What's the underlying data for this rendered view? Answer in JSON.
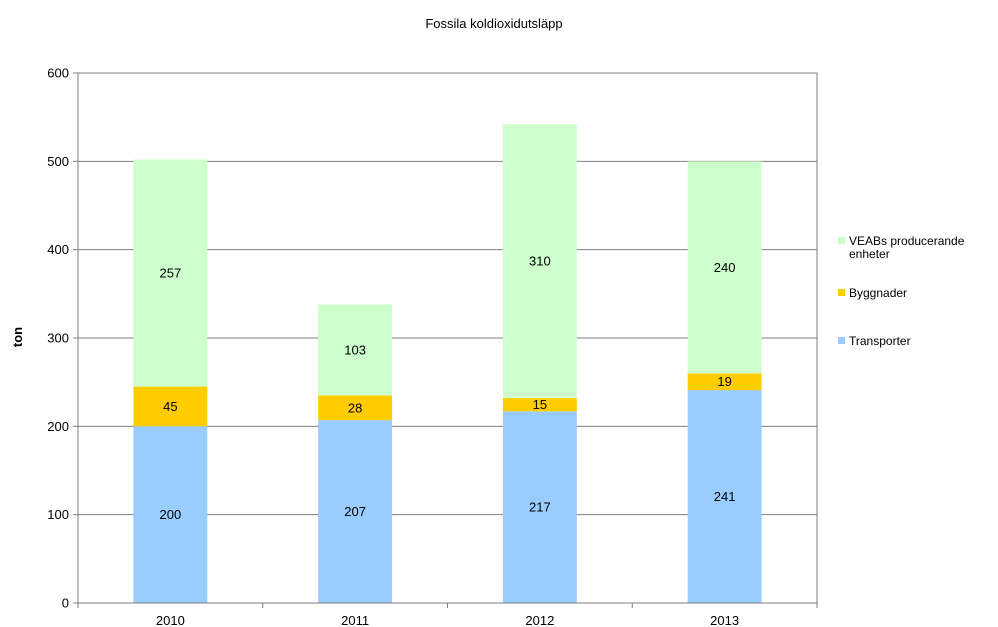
{
  "chart_data": {
    "type": "bar",
    "stacked": true,
    "title": "Fossila koldioxidutsläpp",
    "xlabel": "",
    "ylabel": "ton",
    "ylim": [
      0,
      600
    ],
    "yticks": [
      0,
      100,
      200,
      300,
      400,
      500,
      600
    ],
    "grid": true,
    "legend_position": "right",
    "categories": [
      "2010",
      "2011",
      "2012",
      "2013"
    ],
    "series": [
      {
        "name": "Transporter",
        "color": "#99ccff",
        "values": [
          200,
          207,
          217,
          241
        ]
      },
      {
        "name": "Byggnader",
        "color": "#ffcc00",
        "values": [
          45,
          28,
          15,
          19
        ]
      },
      {
        "name": "VEABs producerande enheter",
        "color": "#ccffcc",
        "values": [
          257,
          103,
          310,
          240
        ]
      }
    ],
    "legend_lines": [
      [
        "VEABs producerande",
        "enheter"
      ],
      [
        "Byggnader"
      ],
      [
        "Transporter"
      ]
    ]
  }
}
